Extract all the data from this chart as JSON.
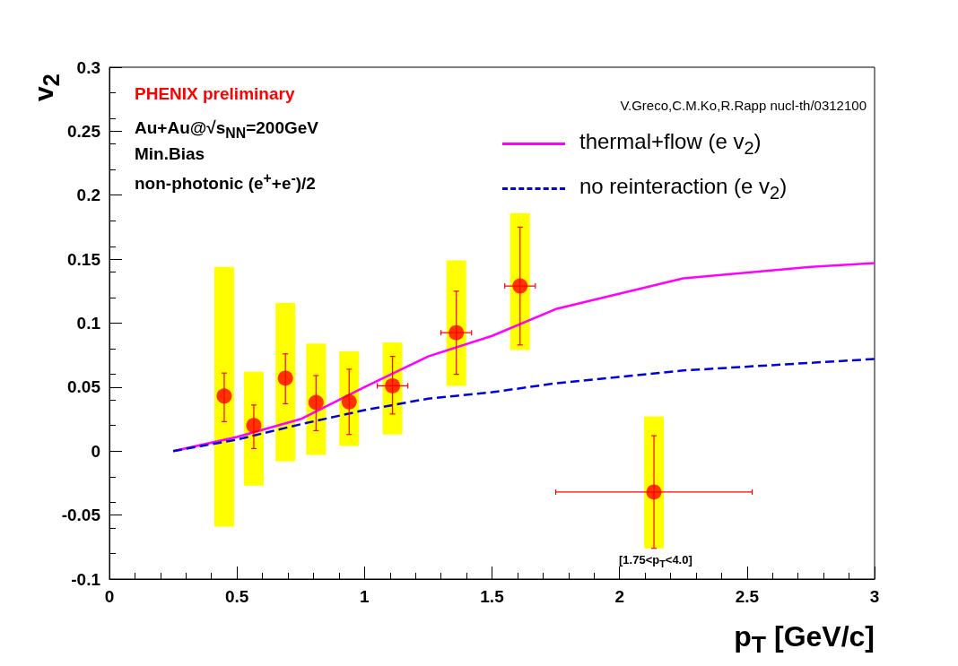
{
  "chart_data": {
    "type": "scatter",
    "xlabel": "p$_{T}$ [GeV/c]",
    "ylabel": "v$_{2}$",
    "xlim": [
      0,
      3
    ],
    "xticks": [
      0,
      0.5,
      1,
      1.5,
      2,
      2.5,
      3
    ],
    "ylim": [
      -0.1,
      0.3
    ],
    "yticks": [
      -0.1,
      -0.05,
      0,
      0.05,
      0.1,
      0.15,
      0.2,
      0.25,
      0.3
    ],
    "grid": false,
    "legend": "top right",
    "annotations": [
      "PHENIX preliminary",
      "Au+Au@√s$_{NN}$=200GeV",
      "Min.Bias",
      "non-photonic (e$^{+}$+e$^{-}$)/2",
      "V.Greco,C.M.Ko,R.Rapp nucl-th/0312100",
      "[1.75<p$_{T}$<4.0]"
    ],
    "series": [
      {
        "marker": "circle",
        "color": "#ff0000",
        "x": [
          0.45,
          0.566,
          0.69,
          0.81,
          0.94,
          1.11,
          1.36,
          1.61,
          2.135
        ],
        "values": [
          0.043,
          0.02,
          0.057,
          0.038,
          0.0385,
          0.051,
          0.0925,
          0.129,
          -0.032
        ],
        "errors": [
          [
            0.023,
            0.061
          ],
          [
            0.002,
            0.036
          ],
          [
            0.037,
            0.076
          ],
          [
            0.016,
            0.059
          ],
          [
            0.013,
            0.064
          ],
          [
            0.029,
            0.074
          ],
          [
            0.06,
            0.125
          ],
          [
            0.083,
            0.175
          ],
          [
            -0.076,
            0.012
          ]
        ],
        "xerrors": [
          null,
          null,
          null,
          null,
          null,
          [
            1.05,
            1.17
          ],
          [
            1.3,
            1.42
          ],
          [
            1.55,
            1.67
          ],
          [
            1.75,
            2.52
          ]
        ]
      },
      {
        "type": "bar",
        "color": "#ffff00",
        "x": [
          0.45,
          0.566,
          0.69,
          0.81,
          0.94,
          1.11,
          1.36,
          1.61,
          2.135
        ],
        "base": [
          -0.059,
          -0.027,
          -0.008,
          -0.003,
          0.004,
          0.013,
          0.051,
          0.079,
          -0.076
        ],
        "values": [
          0.203,
          0.089,
          0.124,
          0.087,
          0.074,
          0.072,
          0.098,
          0.107,
          0.103
        ]
      },
      {
        "type": "line",
        "name": "thermal+flow (e v$_{2}$)",
        "color": "#ff00ff",
        "line_style": "solid",
        "marker": "none",
        "x": [
          0.25,
          0.5,
          0.75,
          1.0,
          1.25,
          1.5,
          1.75,
          2.25,
          2.75,
          3.0
        ],
        "values": [
          0,
          0.011,
          0.025,
          0.05,
          0.074,
          0.09,
          0.111,
          0.135,
          0.144,
          0.147
        ]
      },
      {
        "type": "line",
        "name": "no reinteraction (e v$_{2}$)",
        "color": "#0000dd",
        "line_style": "dashed",
        "marker": "none",
        "x": [
          0.25,
          0.5,
          0.75,
          1.0,
          1.25,
          1.5,
          1.75,
          2.25,
          2.75,
          3.0
        ],
        "values": [
          0,
          0.009,
          0.021,
          0.032,
          0.041,
          0.046,
          0.053,
          0.063,
          0.069,
          0.072
        ]
      }
    ]
  }
}
